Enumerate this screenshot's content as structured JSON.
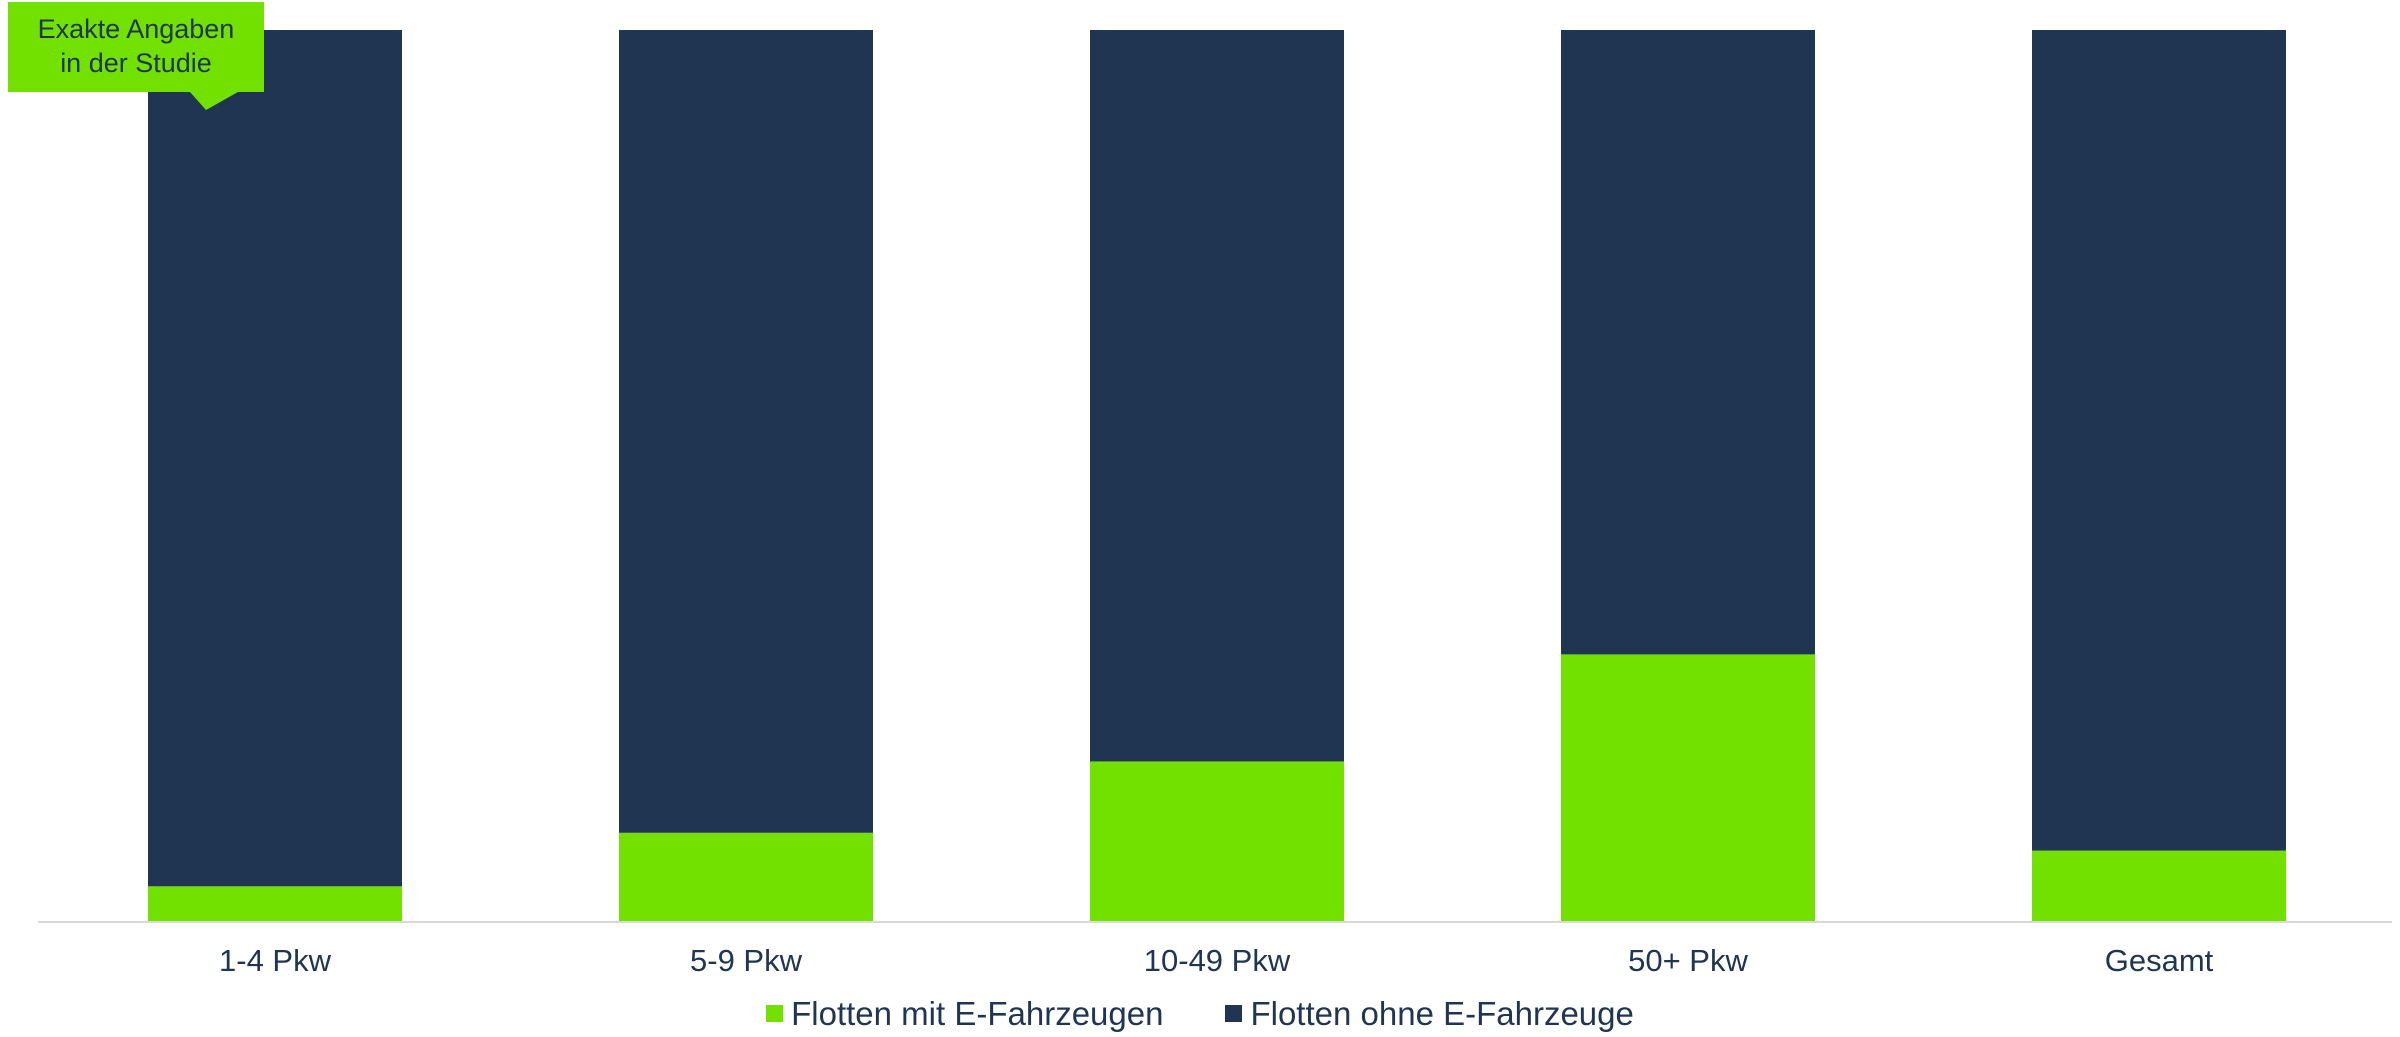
{
  "chart_data": {
    "type": "bar",
    "stacked": true,
    "normalized_percent": true,
    "categories": [
      "1-4 Pkw",
      "5-9 Pkw",
      "10-49 Pkw",
      "50+ Pkw",
      "Gesamt"
    ],
    "series": [
      {
        "name": "Flotten mit E-Fahrzeugen",
        "values": [
          4,
          10,
          18,
          30,
          8
        ],
        "color": "#72e100"
      },
      {
        "name": "Flotten ohne E-Fahrzeuge",
        "values": [
          96,
          90,
          82,
          70,
          92
        ],
        "color": "#1f3552"
      }
    ],
    "ylim": [
      0,
      100
    ],
    "grid": false,
    "legend_position": "bottom",
    "annotation": {
      "line1": "Exakte Angaben",
      "line2": "in der Studie"
    }
  }
}
